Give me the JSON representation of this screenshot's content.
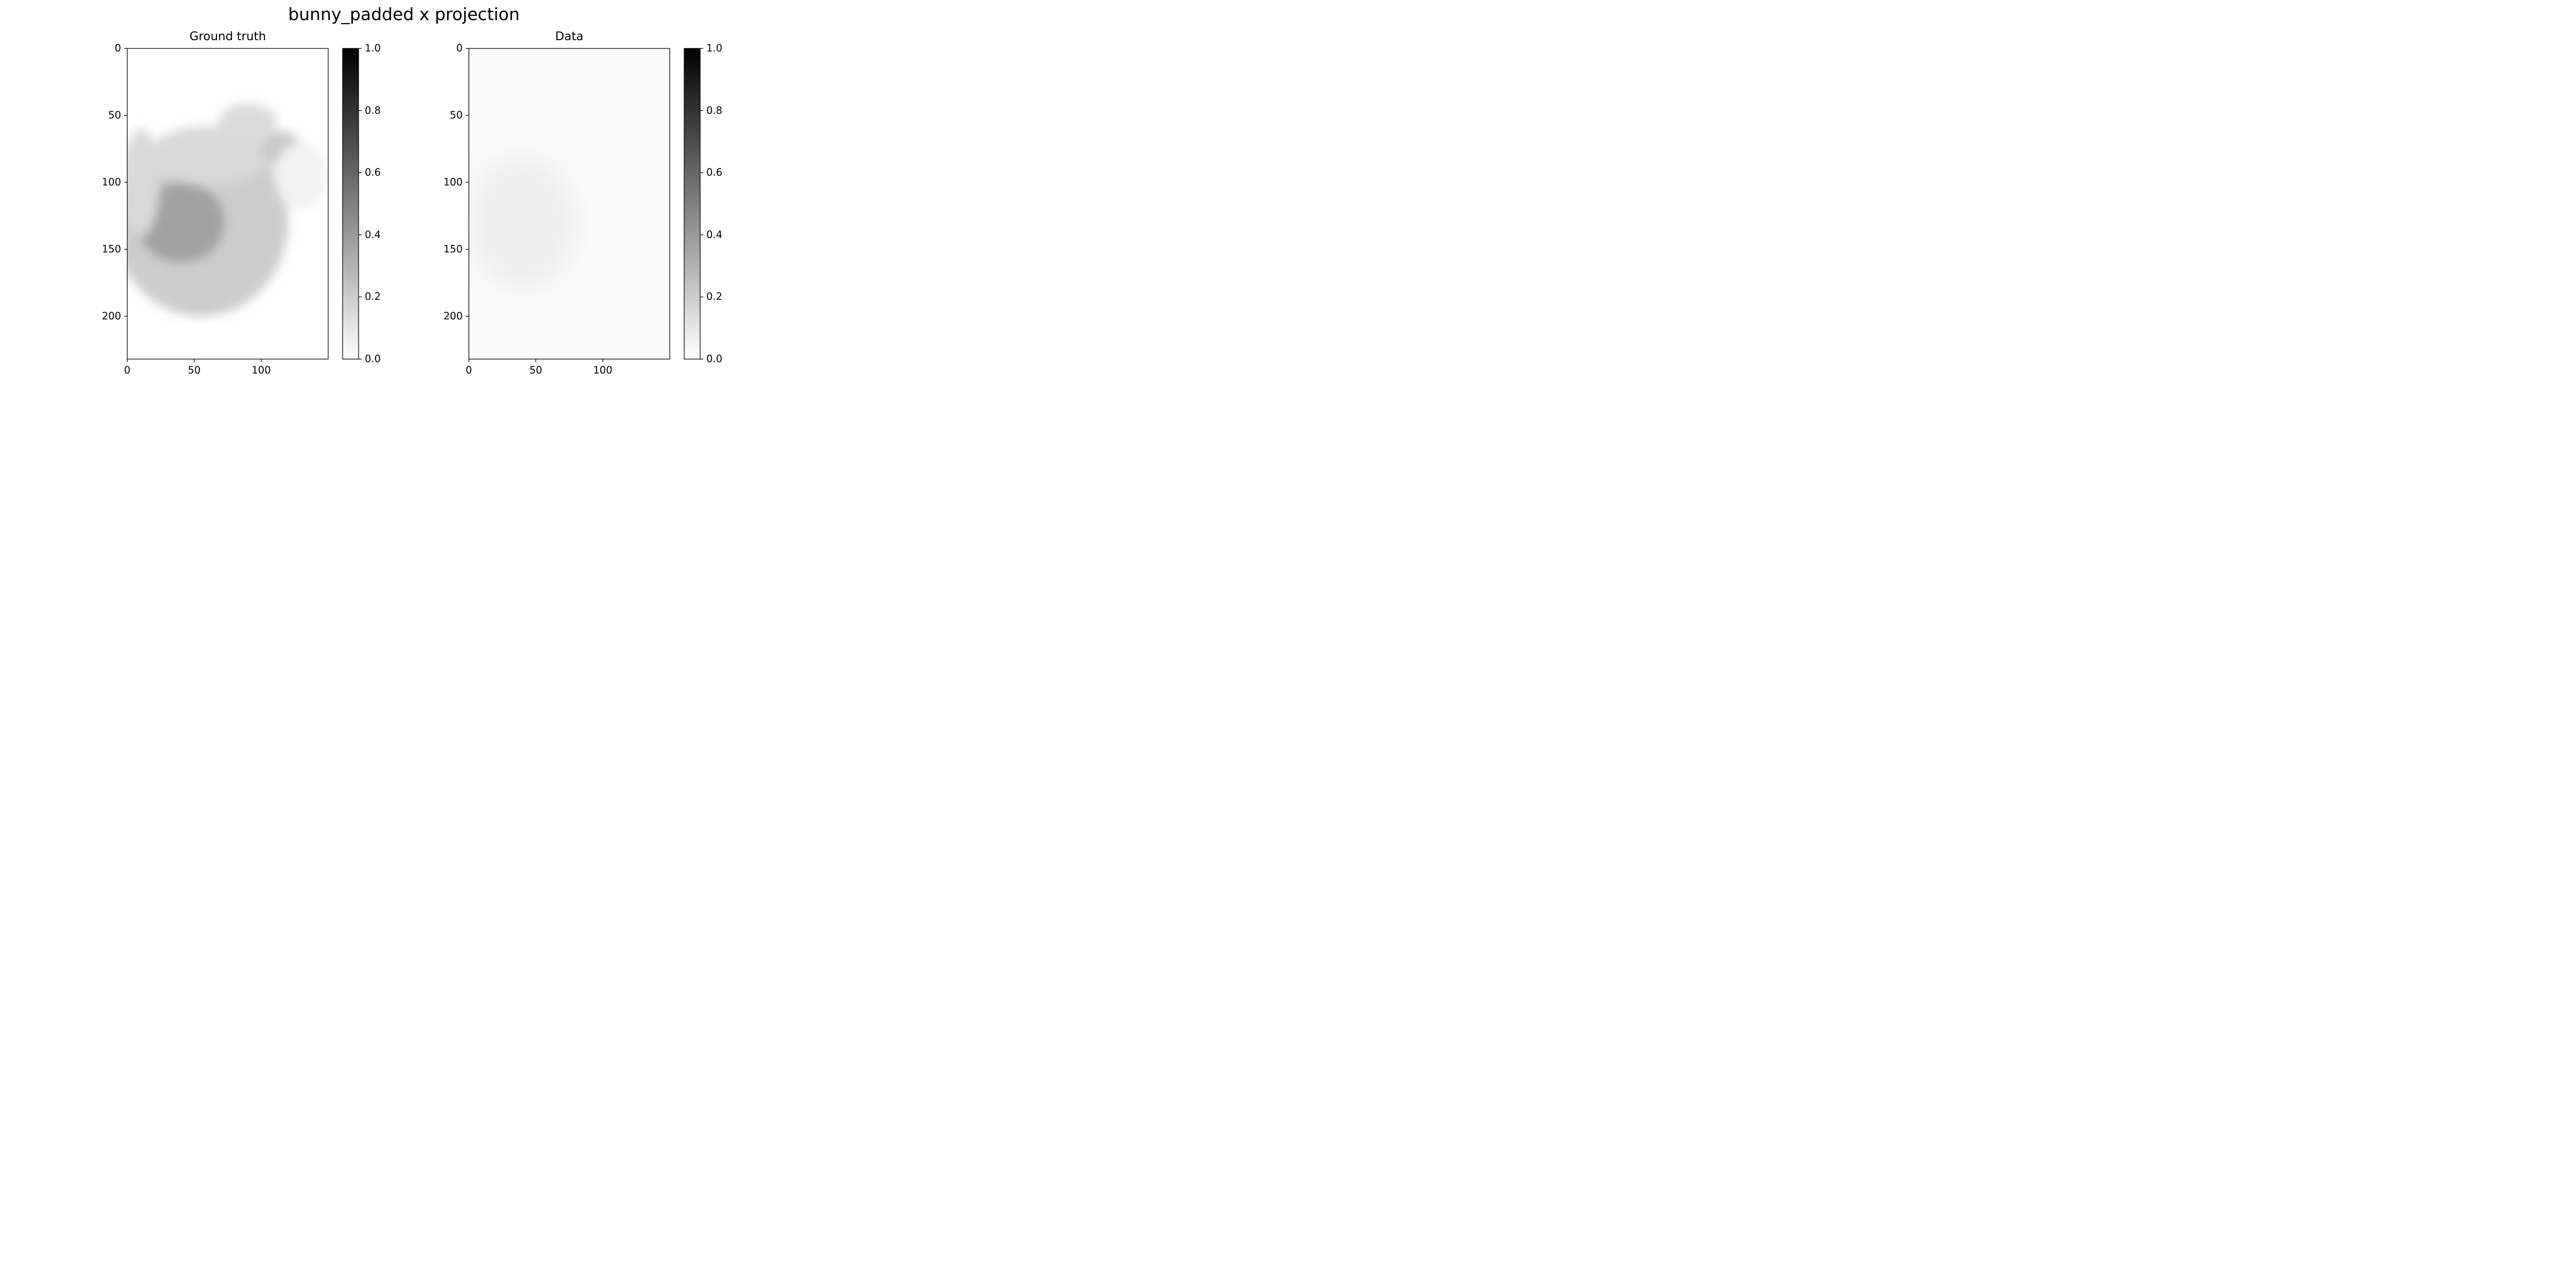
{
  "figure_title": "bunny_padded x projection",
  "colorbar_ticks": [
    "0.0",
    "0.2",
    "0.4",
    "0.6",
    "0.8",
    "1.0"
  ],
  "chart_data": [
    {
      "type": "heatmap",
      "title": "Ground truth",
      "colormap": "gray_r",
      "clim": [
        0.0,
        1.0
      ],
      "image_shape": [
        232,
        150
      ],
      "xlim": [
        0,
        150
      ],
      "ylim": [
        232,
        0
      ],
      "xticks": [
        "0",
        "50",
        "100"
      ],
      "yticks": [
        "0",
        "50",
        "100",
        "150",
        "200"
      ],
      "blobs": [
        {
          "x": 55,
          "y": 130,
          "rx": 65,
          "ry": 70,
          "value": 0.2
        },
        {
          "x": 40,
          "y": 130,
          "rx": 33,
          "ry": 30,
          "value": 0.37
        },
        {
          "x": 60,
          "y": 80,
          "rx": 45,
          "ry": 22,
          "value": 0.15
        },
        {
          "x": 90,
          "y": 55,
          "rx": 22,
          "ry": 14,
          "value": 0.14
        },
        {
          "x": 115,
          "y": 75,
          "rx": 15,
          "ry": 13,
          "value": 0.22
        },
        {
          "x": 130,
          "y": 95,
          "rx": 20,
          "ry": 25,
          "value": 0.05
        },
        {
          "x": 10,
          "y": 100,
          "rx": 14,
          "ry": 40,
          "value": 0.15
        }
      ]
    },
    {
      "type": "heatmap",
      "title": "Data",
      "colormap": "gray_r",
      "clim": [
        0.0,
        1.0
      ],
      "image_shape": [
        232,
        150
      ],
      "xlim": [
        0,
        150
      ],
      "ylim": [
        232,
        0
      ],
      "xticks": [
        "0",
        "50",
        "100"
      ],
      "yticks": [
        "0",
        "50",
        "100",
        "150",
        "200"
      ],
      "background_value": 0.02,
      "blobs": [
        {
          "x": 40,
          "y": 130,
          "rx": 40,
          "ry": 50,
          "value": 0.07
        },
        {
          "x": 110,
          "y": 80,
          "rx": 15,
          "ry": 15,
          "value": 0.03
        }
      ]
    }
  ]
}
